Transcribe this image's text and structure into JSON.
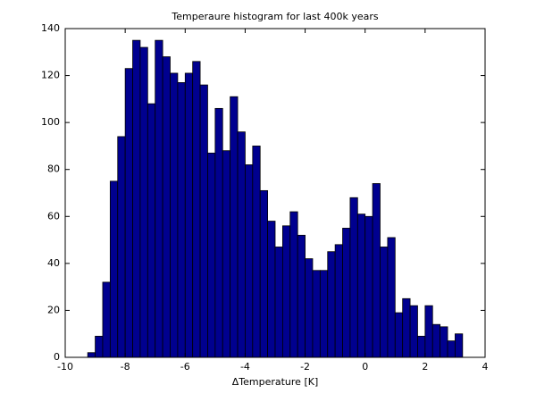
{
  "chart_data": {
    "type": "histogram",
    "title": "Temperaure histogram for last  400k  years",
    "x_label": "ΔTemperature  [K]",
    "bins": [
      -9.25,
      -9,
      -8.75,
      -8.5,
      -8.25,
      -8,
      -7.75,
      -7.5,
      -7.25,
      -7,
      -6.75,
      -6.5,
      -6.25,
      -6,
      -5.75,
      -5.5,
      -5.25,
      -5,
      -4.75,
      -4.5,
      -4.25,
      -4,
      -3.75,
      -3.5,
      -3.25,
      -3,
      -2.75,
      -2.5,
      -2.25,
      -2,
      -1.75,
      -1.5,
      -1.25,
      -1,
      -0.75,
      -0.5,
      -0.25,
      0,
      0.25,
      0.5,
      0.75,
      1,
      1.25,
      1.5,
      1.75,
      2,
      2.25,
      2.5,
      2.75,
      3,
      3.25
    ],
    "values": [
      2,
      9,
      32,
      75,
      94,
      123,
      135,
      132,
      108,
      135,
      128,
      121,
      117,
      121,
      126,
      116,
      87,
      106,
      88,
      111,
      96,
      82,
      90,
      71,
      58,
      47,
      56,
      62,
      52,
      42,
      37,
      37,
      45,
      48,
      55,
      68,
      61,
      60,
      74,
      47,
      51,
      19,
      25,
      22,
      9,
      22,
      14,
      13,
      7,
      10
    ],
    "color": "#00008f",
    "xlim": [
      -10,
      4
    ],
    "xticks": [
      -10,
      -8,
      -6,
      -4,
      -2,
      0,
      2,
      4
    ],
    "ylim": [
      0,
      140
    ],
    "yticks": [
      0,
      20,
      40,
      60,
      80,
      100,
      120,
      140
    ]
  }
}
